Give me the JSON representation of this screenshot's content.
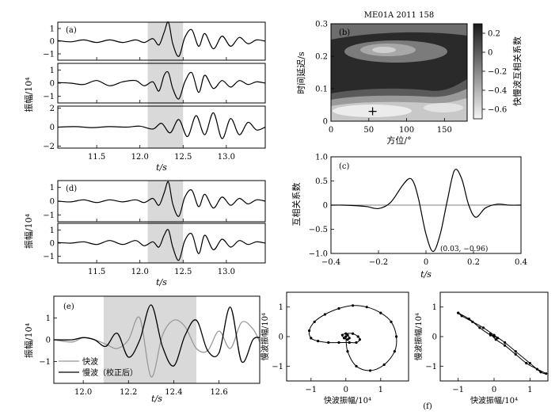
{
  "chart_data": [
    {
      "type": "line",
      "panel": "(a)",
      "ylabel": "振幅/10⁴",
      "xlabel": "t/s",
      "xlim": [
        11.05,
        13.45
      ],
      "xticks": [
        "11.5",
        "12.0",
        "12.5",
        "13.0"
      ],
      "shaded_window": [
        12.09,
        12.5
      ],
      "subplots": [
        {
          "ylim": [
            -1.5,
            1.5
          ],
          "yticks": [
            "1",
            "0",
            "−1"
          ],
          "t": [
            11.05,
            11.2,
            11.35,
            11.5,
            11.65,
            11.8,
            11.95,
            12.05,
            12.15,
            12.22,
            12.28,
            12.33,
            12.38,
            12.45,
            12.52,
            12.6,
            12.68,
            12.75,
            12.85,
            12.95,
            13.05,
            13.15,
            13.25,
            13.35,
            13.45
          ],
          "values": [
            0.05,
            -0.05,
            0.1,
            -0.1,
            0.1,
            -0.1,
            0.1,
            -0.1,
            0.2,
            -0.3,
            0.7,
            1.5,
            -0.2,
            -1.2,
            0.3,
            0.9,
            -0.4,
            0.6,
            -0.6,
            0.4,
            -0.4,
            0.3,
            -0.2,
            0.1,
            0.0
          ]
        },
        {
          "ylim": [
            -1.5,
            1.5
          ],
          "yticks": [
            "1",
            "0",
            "−1"
          ],
          "t": [
            11.05,
            11.2,
            11.35,
            11.5,
            11.65,
            11.8,
            11.95,
            12.05,
            12.15,
            12.22,
            12.28,
            12.33,
            12.38,
            12.45,
            12.52,
            12.6,
            12.68,
            12.75,
            12.85,
            12.95,
            13.05,
            13.15,
            13.25,
            13.35,
            13.45
          ],
          "values": [
            0.05,
            0.0,
            -0.1,
            0.2,
            -0.2,
            0.1,
            0.2,
            -0.2,
            0.1,
            -0.6,
            0.6,
            0.8,
            -0.4,
            -1.2,
            0.1,
            0.8,
            -0.7,
            0.6,
            -0.4,
            0.2,
            -0.3,
            0.2,
            -0.1,
            0.1,
            0.0
          ]
        },
        {
          "ylim": [
            -2.2,
            2.2
          ],
          "yticks": [
            "2",
            "0",
            "−2"
          ],
          "t": [
            11.05,
            11.25,
            11.45,
            11.65,
            11.85,
            12.0,
            12.15,
            12.25,
            12.35,
            12.45,
            12.55,
            12.65,
            12.75,
            12.85,
            12.95,
            13.05,
            13.15,
            13.25,
            13.35,
            13.45
          ],
          "values": [
            0.0,
            0.05,
            -0.05,
            0.05,
            0.0,
            0.1,
            -0.2,
            0.4,
            -0.6,
            0.8,
            -1.0,
            1.2,
            -0.8,
            1.5,
            -1.2,
            0.9,
            -0.8,
            0.5,
            -0.3,
            0.0
          ]
        }
      ]
    },
    {
      "type": "heatmap",
      "panel": "(b)",
      "title": "ME01A  2011  158",
      "xlabel": "方位/°",
      "ylabel": "时间延迟/s",
      "xlim": [
        0,
        180
      ],
      "ylim": [
        0,
        0.3
      ],
      "xticks": [
        "0",
        "50",
        "100",
        "150"
      ],
      "yticks": [
        "0.3",
        "0.2",
        "0.1",
        "0"
      ],
      "colorbar_label": "快慢波互相关系数",
      "colorbar_ticks": [
        "0.2",
        "0",
        "−0.2",
        "−0.4",
        "−0.6"
      ],
      "marker": {
        "azimuth": 55,
        "delay": 0.03,
        "symbol": "+"
      }
    },
    {
      "type": "line",
      "panel": "(c)",
      "xlabel": "t/s",
      "ylabel": "互相关系数",
      "xlim": [
        -0.4,
        0.4
      ],
      "ylim": [
        -1.0,
        1.0
      ],
      "xticks": [
        "−0.4",
        "−0.2",
        "0",
        "0.2",
        "0.4"
      ],
      "yticks": [
        "1.0",
        "0.5",
        "0",
        "−0.5",
        "−1.0"
      ],
      "annotation": "(0.03, −0.96)",
      "t": [
        -0.4,
        -0.35,
        -0.3,
        -0.25,
        -0.2,
        -0.15,
        -0.1,
        -0.07,
        -0.05,
        -0.03,
        0.0,
        0.03,
        0.06,
        0.09,
        0.12,
        0.15,
        0.18,
        0.21,
        0.25,
        0.3,
        0.35,
        0.4
      ],
      "values": [
        0.0,
        0.0,
        -0.01,
        -0.03,
        -0.07,
        0.05,
        0.4,
        0.55,
        0.45,
        0.1,
        -0.6,
        -0.96,
        -0.6,
        0.1,
        0.72,
        0.55,
        0.0,
        -0.25,
        -0.06,
        0.02,
        0.0,
        0.0
      ]
    },
    {
      "type": "line",
      "panel": "(d)",
      "ylabel": "振幅/10⁴",
      "xlabel": "t/s",
      "xlim": [
        11.05,
        13.45
      ],
      "xticks": [
        "11.5",
        "12.0",
        "12.5",
        "13.0"
      ],
      "shaded_window": [
        12.09,
        12.5
      ],
      "subplots": [
        {
          "ylim": [
            -1.5,
            1.5
          ],
          "yticks": [
            "1",
            "0",
            "−1"
          ],
          "t": [
            11.05,
            11.2,
            11.35,
            11.5,
            11.65,
            11.8,
            11.95,
            12.05,
            12.15,
            12.22,
            12.28,
            12.33,
            12.38,
            12.45,
            12.52,
            12.6,
            12.68,
            12.75,
            12.85,
            12.95,
            13.05,
            13.15,
            13.25,
            13.35,
            13.45
          ],
          "values": [
            0.0,
            -0.05,
            0.1,
            -0.1,
            0.1,
            -0.05,
            0.1,
            -0.1,
            0.2,
            -0.3,
            0.6,
            1.4,
            -0.2,
            -1.1,
            0.3,
            0.8,
            -0.4,
            0.5,
            -0.5,
            0.3,
            -0.3,
            0.2,
            -0.2,
            0.1,
            0.0
          ]
        },
        {
          "ylim": [
            -1.5,
            1.5
          ],
          "yticks": [
            "1",
            "0",
            "−1"
          ],
          "t": [
            11.05,
            11.2,
            11.35,
            11.5,
            11.65,
            11.8,
            11.95,
            12.05,
            12.15,
            12.22,
            12.28,
            12.33,
            12.38,
            12.45,
            12.52,
            12.6,
            12.68,
            12.75,
            12.85,
            12.95,
            13.05,
            13.15,
            13.25,
            13.35,
            13.45
          ],
          "values": [
            0.05,
            0.0,
            0.1,
            -0.1,
            0.2,
            -0.1,
            0.2,
            -0.2,
            0.1,
            -0.3,
            0.6,
            1.0,
            -0.3,
            -1.3,
            0.2,
            0.7,
            -0.8,
            0.6,
            -0.5,
            0.3,
            -0.3,
            0.2,
            -0.1,
            0.1,
            0.0
          ]
        }
      ]
    },
    {
      "type": "line",
      "panel": "(e)",
      "ylabel": "振幅/10⁴",
      "xlabel": "t/s",
      "xlim": [
        11.87,
        12.78
      ],
      "ylim": [
        -2.0,
        2.0
      ],
      "xticks": [
        "12.0",
        "12.2",
        "12.4",
        "12.6"
      ],
      "yticks": [
        "1",
        "0",
        "−1"
      ],
      "shaded_window": [
        12.09,
        12.5
      ],
      "series": [
        {
          "name": "快波",
          "color": "#999999",
          "t": [
            11.87,
            11.95,
            12.0,
            12.05,
            12.1,
            12.15,
            12.2,
            12.25,
            12.3,
            12.35,
            12.4,
            12.45,
            12.5,
            12.55,
            12.6,
            12.65,
            12.7,
            12.75,
            12.78
          ],
          "values": [
            0.0,
            -0.1,
            0.1,
            0.0,
            -0.2,
            -0.4,
            0.0,
            1.0,
            -1.7,
            0.2,
            0.9,
            0.6,
            -0.4,
            -0.5,
            0.4,
            -0.4,
            0.8,
            0.5,
            -0.1
          ]
        },
        {
          "name": "慢波（校正后）",
          "color": "#000000",
          "t": [
            11.87,
            11.95,
            12.0,
            12.05,
            12.1,
            12.15,
            12.2,
            12.25,
            12.3,
            12.35,
            12.4,
            12.45,
            12.5,
            12.55,
            12.6,
            12.65,
            12.7,
            12.75,
            12.78
          ],
          "values": [
            0.0,
            0.0,
            0.1,
            0.0,
            -0.3,
            0.3,
            -0.8,
            0.0,
            1.6,
            -0.3,
            -1.2,
            0.2,
            0.9,
            -0.5,
            -0.6,
            1.5,
            -1.0,
            0.0,
            0.1
          ]
        }
      ]
    },
    {
      "type": "scatter",
      "panel": "(f)",
      "subplots": [
        {
          "xlabel": "快波振幅/10⁴",
          "ylabel": "慢波振幅/10⁴",
          "xlim": [
            -1.7,
            1.8
          ],
          "ylim": [
            -1.5,
            1.5
          ],
          "xticks": [
            "−1",
            "0",
            "1"
          ],
          "yticks": [
            "1",
            "0",
            "−1"
          ],
          "x": [
            0.0,
            0.05,
            0.1,
            0.05,
            -0.05,
            -0.1,
            0.0,
            0.2,
            0.35,
            0.4,
            0.3,
            0.1,
            -0.2,
            -0.5,
            -0.8,
            -1.0,
            -1.05,
            -0.9,
            -0.6,
            -0.2,
            0.2,
            0.6,
            1.0,
            1.3,
            1.45,
            1.4,
            1.1,
            0.7,
            0.3,
            0.05,
            0.0
          ],
          "y": [
            0.0,
            0.05,
            -0.05,
            -0.1,
            -0.05,
            0.05,
            0.1,
            0.1,
            0.0,
            -0.1,
            -0.2,
            -0.2,
            -0.2,
            -0.2,
            -0.15,
            -0.05,
            0.2,
            0.5,
            0.75,
            0.95,
            1.05,
            1.0,
            0.8,
            0.5,
            0.0,
            -0.5,
            -0.95,
            -1.15,
            -1.0,
            -0.5,
            0.0
          ]
        },
        {
          "xlabel": "快波振幅/10⁴",
          "ylabel": "慢波振幅/10⁴",
          "xlim": [
            -1.5,
            1.5
          ],
          "ylim": [
            -1.5,
            1.5
          ],
          "xticks": [
            "−1",
            "0",
            "1"
          ],
          "yticks": [
            "1",
            "0",
            "−1"
          ],
          "x": [
            -1.0,
            -0.7,
            -0.4,
            -0.1,
            0.1,
            0.0,
            -0.1,
            0.05,
            0.3,
            0.6,
            0.9,
            1.2,
            1.45,
            1.3,
            1.0,
            0.6,
            0.3,
            0.0,
            -0.3,
            -0.6,
            -0.9,
            -1.0
          ],
          "y": [
            0.8,
            0.6,
            0.3,
            0.05,
            -0.05,
            0.0,
            0.1,
            -0.1,
            -0.3,
            -0.6,
            -0.9,
            -1.1,
            -1.25,
            -1.2,
            -0.9,
            -0.5,
            -0.2,
            0.05,
            0.3,
            0.5,
            0.7,
            0.8
          ]
        }
      ]
    }
  ]
}
